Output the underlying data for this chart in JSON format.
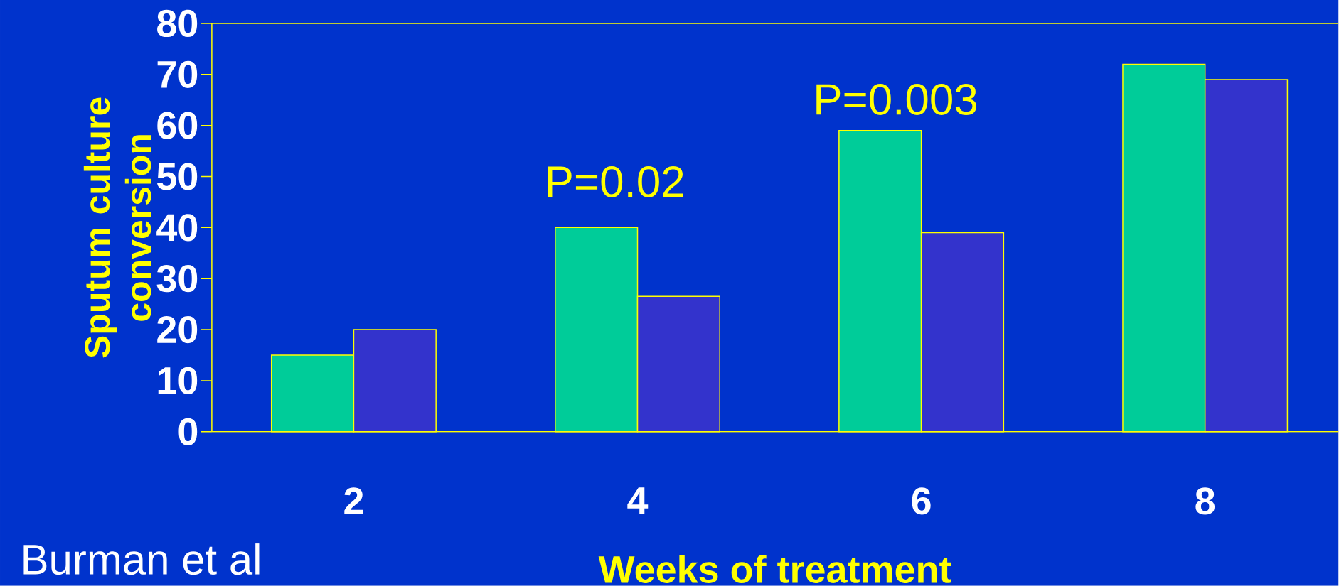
{
  "chart_data": {
    "type": "bar",
    "xlabel": "Weeks of treatment",
    "ylabel": "Sputum culture conversion",
    "categories": [
      "2",
      "4",
      "6",
      "8"
    ],
    "series": [
      {
        "color": "#00cc99",
        "values": [
          15,
          40,
          59,
          72
        ]
      },
      {
        "color": "#3333cc",
        "values": [
          20,
          26.5,
          39,
          69
        ]
      }
    ],
    "ylim": [
      0,
      80
    ],
    "yticks": [
      0,
      10,
      20,
      30,
      40,
      50,
      60,
      70,
      80
    ],
    "annotations": [
      "P=0.02",
      "P=0.003",
      "Burman et al"
    ]
  }
}
